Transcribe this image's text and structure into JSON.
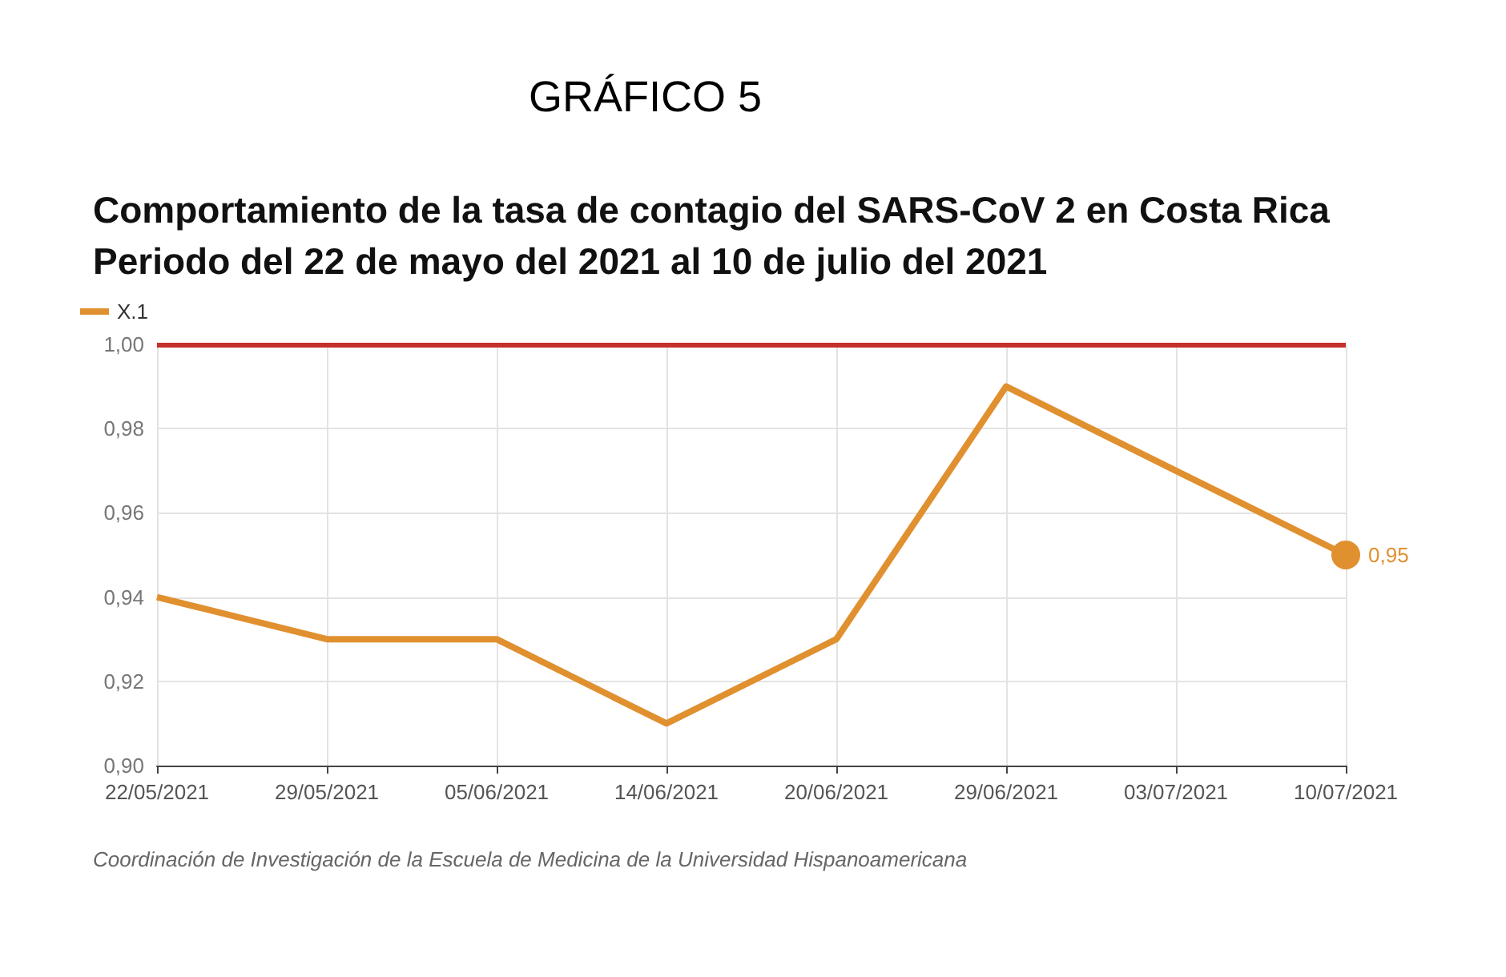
{
  "chart_data": {
    "type": "line",
    "title": "GRÁFICO 5",
    "subtitle": "Comportamiento de la tasa de contagio del SARS-CoV 2 en Costa Rica\nPeriodo del 22 de mayo del 2021 al 10 de julio del 2021",
    "categories": [
      "22/05/2021",
      "29/05/2021",
      "05/06/2021",
      "14/06/2021",
      "20/06/2021",
      "29/06/2021",
      "03/07/2021",
      "10/07/2021"
    ],
    "series": [
      {
        "name": "X.1",
        "color": "#e0902f",
        "values": [
          0.94,
          0.93,
          0.93,
          0.91,
          0.93,
          0.99,
          0.97,
          0.95
        ],
        "value_labels": [
          null,
          null,
          null,
          null,
          null,
          null,
          null,
          "0,95"
        ]
      }
    ],
    "ylim": [
      0.9,
      1.0
    ],
    "yticks": [
      {
        "value": 0.9,
        "label": "0,90"
      },
      {
        "value": 0.92,
        "label": "0,92"
      },
      {
        "value": 0.94,
        "label": "0,94"
      },
      {
        "value": 0.96,
        "label": "0,96"
      },
      {
        "value": 0.98,
        "label": "0,98"
      },
      {
        "value": 1.0,
        "label": "1,00"
      }
    ],
    "ref_lines": [
      {
        "axis": "y",
        "value": 1.0,
        "color": "#c4302b"
      }
    ],
    "grid": true,
    "legend": "top left",
    "annotations": [
      "Coordinación de Investigación de la Escuela de Medicina de la Universidad Hispanoamericana"
    ]
  }
}
